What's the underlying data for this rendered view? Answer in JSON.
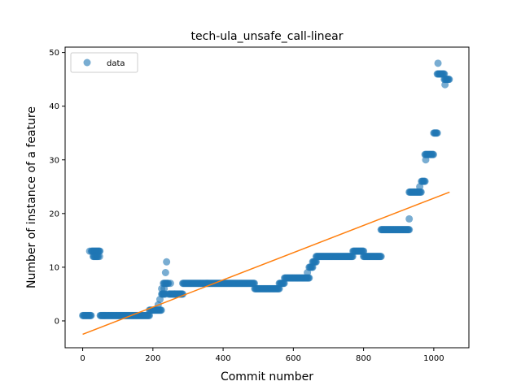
{
  "chart_data": {
    "type": "scatter",
    "title": "tech-ula_unsafe_call-linear",
    "xlabel": "Commit number",
    "ylabel": "Number of instance of a feature",
    "xlim": [
      -50,
      1100
    ],
    "ylim": [
      -5,
      51
    ],
    "xticks": [
      0,
      200,
      400,
      600,
      800,
      1000
    ],
    "yticks": [
      0,
      10,
      20,
      30,
      40,
      50
    ],
    "grid": false,
    "legend": {
      "placement": "top-left",
      "entries": [
        "data"
      ]
    },
    "colors": {
      "points": "#1f77b4",
      "fit": "#ff7f0e"
    },
    "segments": [
      {
        "x": [
          0,
          25
        ],
        "y": 1
      },
      {
        "x": [
          25,
          50
        ],
        "y": 13
      },
      {
        "x": [
          30,
          45
        ],
        "y": 12
      },
      {
        "x": [
          50,
          190
        ],
        "y": 1
      },
      {
        "x": [
          190,
          225
        ],
        "y": 2
      },
      {
        "x": [
          225,
          235
        ],
        "y": 5
      },
      {
        "x": [
          230,
          245
        ],
        "y": 7
      },
      {
        "x": [
          245,
          285
        ],
        "y": 5
      },
      {
        "x": [
          285,
          490
        ],
        "y": 7
      },
      {
        "x": [
          490,
          560
        ],
        "y": 6
      },
      {
        "x": [
          560,
          575
        ],
        "y": 7
      },
      {
        "x": [
          575,
          645
        ],
        "y": 8
      },
      {
        "x": [
          645,
          655
        ],
        "y": 10
      },
      {
        "x": [
          655,
          665
        ],
        "y": 11
      },
      {
        "x": [
          665,
          770
        ],
        "y": 12
      },
      {
        "x": [
          770,
          800
        ],
        "y": 13
      },
      {
        "x": [
          800,
          850
        ],
        "y": 12
      },
      {
        "x": [
          850,
          930
        ],
        "y": 17
      },
      {
        "x": [
          930,
          965
        ],
        "y": 24
      },
      {
        "x": [
          965,
          975
        ],
        "y": 26
      },
      {
        "x": [
          975,
          1000
        ],
        "y": 31
      },
      {
        "x": [
          1000,
          1010
        ],
        "y": 35
      },
      {
        "x": [
          1010,
          1030
        ],
        "y": 46
      },
      {
        "x": [
          1030,
          1045
        ],
        "y": 45
      }
    ],
    "extra_points": [
      {
        "x": 20,
        "y": 13
      },
      {
        "x": 48,
        "y": 12
      },
      {
        "x": 215,
        "y": 3
      },
      {
        "x": 220,
        "y": 4
      },
      {
        "x": 225,
        "y": 6
      },
      {
        "x": 228,
        "y": 5
      },
      {
        "x": 232,
        "y": 6
      },
      {
        "x": 236,
        "y": 9
      },
      {
        "x": 239,
        "y": 11
      },
      {
        "x": 250,
        "y": 7
      },
      {
        "x": 262,
        "y": 5
      },
      {
        "x": 640,
        "y": 9
      },
      {
        "x": 930,
        "y": 19
      },
      {
        "x": 960,
        "y": 25
      },
      {
        "x": 977,
        "y": 30
      },
      {
        "x": 1012,
        "y": 48
      },
      {
        "x": 1032,
        "y": 44
      }
    ],
    "fit_line": {
      "x": [
        0,
        1045
      ],
      "y": [
        -2.5,
        24
      ]
    }
  }
}
